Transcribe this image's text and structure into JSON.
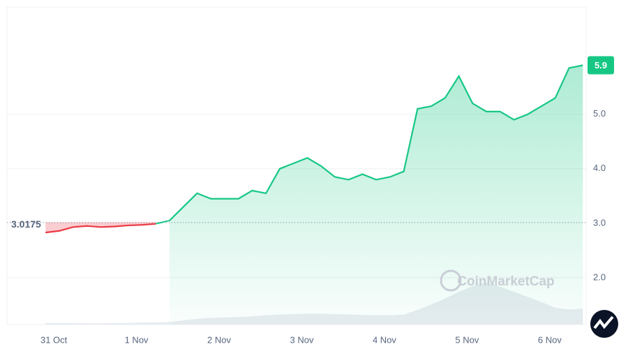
{
  "chart_data": {
    "type": "line",
    "values": [
      2.83,
      2.86,
      2.93,
      2.95,
      2.93,
      2.94,
      2.96,
      2.97,
      2.99,
      3.05,
      3.3,
      3.55,
      3.45,
      3.45,
      3.45,
      3.6,
      3.55,
      4.0,
      4.1,
      4.2,
      4.05,
      3.85,
      3.8,
      3.9,
      3.8,
      3.85,
      3.95,
      5.1,
      5.15,
      5.3,
      5.7,
      5.2,
      5.05,
      5.05,
      4.9,
      5.0,
      5.15,
      5.3,
      5.85,
      5.9
    ],
    "volume": [
      4,
      4,
      4,
      3,
      3,
      4,
      4,
      5,
      5,
      6,
      10,
      14,
      16,
      17,
      18,
      20,
      22,
      24,
      25,
      26,
      26,
      25,
      24,
      23,
      22,
      22,
      24,
      35,
      48,
      62,
      78,
      92,
      100,
      90,
      78,
      66,
      54,
      40,
      36,
      38
    ],
    "volume_lim": [
      0,
      100
    ],
    "xlim": [
      -2.8,
      39.24
    ],
    "xticks": [
      {
        "value": 0.6,
        "label": "31 Oct"
      },
      {
        "value": 6.6,
        "label": "1 Nov"
      },
      {
        "value": 12.6,
        "label": "2 Nov"
      },
      {
        "value": 18.6,
        "label": "3 Nov"
      },
      {
        "value": 24.6,
        "label": "4 Nov"
      },
      {
        "value": 30.6,
        "label": "5 Nov"
      },
      {
        "value": 36.6,
        "label": "6 Nov"
      }
    ],
    "ylim": [
      1.14,
      6.97
    ],
    "yticks": [
      {
        "value": 2,
        "label": "2.0"
      },
      {
        "value": 3,
        "label": "3.0"
      },
      {
        "value": 4,
        "label": "4.0"
      },
      {
        "value": 5,
        "label": "5.0"
      }
    ],
    "reference": 3.0175,
    "current_price": 5.9,
    "up_color": "#16c784",
    "down_color": "#ea3943",
    "grid": true,
    "watermark": "CoinMarketCap"
  }
}
